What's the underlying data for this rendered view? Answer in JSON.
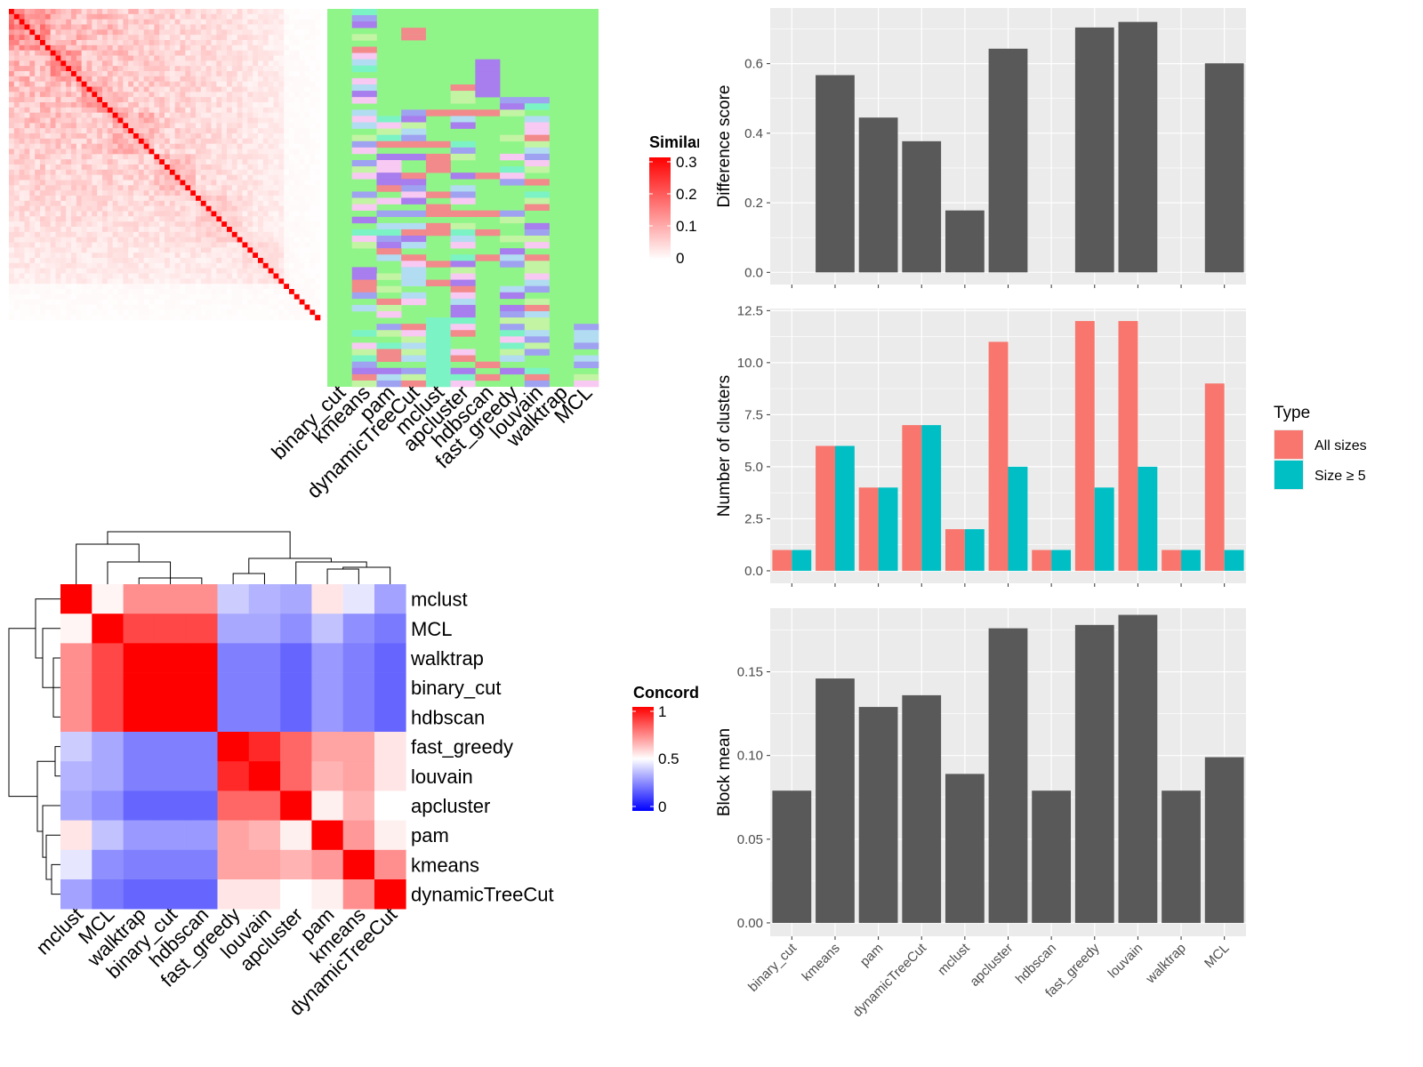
{
  "colors": {
    "heat_low": "#ffffff",
    "heat_high": "#ff0000",
    "conc_low": "#0000ff",
    "conc_mid": "#ffffff",
    "conc_high": "#ff0000",
    "bar_fill": "#595959",
    "panel_bg": "#ebebeb",
    "grid": "#ffffff",
    "all_sizes": "#f8766d",
    "size5": "#00bfc4",
    "cluster_green": "#90f589",
    "cluster_purple": "#a87ded",
    "cluster_salmon": "#f2898b",
    "cluster_lavender": "#9fa2f0",
    "cluster_lightblue": "#b2dcf1",
    "cluster_teal": "#7cf3c5",
    "cluster_pink": "#f8c9f2",
    "cluster_lightgreen": "#c3f4a3"
  },
  "top_left": {
    "legend_title": "Similarity",
    "legend_ticks": [
      "0.3",
      "0.2",
      "0.1",
      "0"
    ],
    "methods": [
      "binary_cut",
      "kmeans",
      "pam",
      "dynamicTreeCut",
      "mclust",
      "apcluster",
      "hdbscan",
      "fast_greedy",
      "louvain",
      "walktrap",
      "MCL"
    ]
  },
  "concordance": {
    "legend_title": "Concordance",
    "legend_ticks": [
      "1",
      "0.5",
      "0"
    ],
    "methods": [
      "mclust",
      "MCL",
      "walktrap",
      "binary_cut",
      "hdbscan",
      "fast_greedy",
      "louvain",
      "apcluster",
      "pam",
      "kmeans",
      "dynamicTreeCut"
    ],
    "matrix": [
      [
        1.0,
        0.52,
        0.72,
        0.72,
        0.72,
        0.4,
        0.35,
        0.33,
        0.55,
        0.45,
        0.32
      ],
      [
        0.52,
        1.0,
        0.86,
        0.86,
        0.86,
        0.33,
        0.33,
        0.28,
        0.38,
        0.28,
        0.24
      ],
      [
        0.72,
        0.86,
        1.0,
        1.0,
        1.0,
        0.25,
        0.25,
        0.2,
        0.3,
        0.25,
        0.2
      ],
      [
        0.72,
        0.86,
        1.0,
        1.0,
        1.0,
        0.25,
        0.25,
        0.2,
        0.3,
        0.25,
        0.2
      ],
      [
        0.72,
        0.86,
        1.0,
        1.0,
        1.0,
        0.25,
        0.25,
        0.2,
        0.3,
        0.25,
        0.2
      ],
      [
        0.4,
        0.33,
        0.25,
        0.25,
        0.25,
        1.0,
        0.92,
        0.8,
        0.68,
        0.68,
        0.55
      ],
      [
        0.35,
        0.33,
        0.25,
        0.25,
        0.25,
        0.92,
        1.0,
        0.8,
        0.65,
        0.68,
        0.55
      ],
      [
        0.33,
        0.28,
        0.2,
        0.2,
        0.2,
        0.8,
        0.8,
        1.0,
        0.53,
        0.65,
        0.5
      ],
      [
        0.55,
        0.38,
        0.3,
        0.3,
        0.3,
        0.68,
        0.65,
        0.53,
        1.0,
        0.7,
        0.53
      ],
      [
        0.45,
        0.28,
        0.25,
        0.25,
        0.25,
        0.68,
        0.68,
        0.65,
        0.7,
        1.0,
        0.72
      ],
      [
        0.32,
        0.24,
        0.2,
        0.2,
        0.2,
        0.55,
        0.55,
        0.5,
        0.53,
        0.72,
        1.0
      ]
    ]
  },
  "chart_data": [
    {
      "type": "bar",
      "ylabel": "Difference score",
      "categories": [
        "binary_cut",
        "kmeans",
        "pam",
        "dynamicTreeCut",
        "mclust",
        "apcluster",
        "hdbscan",
        "fast_greedy",
        "louvain",
        "walktrap",
        "MCL"
      ],
      "values": [
        0,
        0.567,
        0.445,
        0.377,
        0.178,
        0.643,
        0,
        0.704,
        0.72,
        0,
        0.601
      ],
      "ylim": [
        -0.035,
        0.76
      ],
      "yticks": [
        0.0,
        0.2,
        0.4,
        0.6
      ],
      "ytick_labels": [
        "0.0",
        "0.2",
        "0.4",
        "0.6"
      ],
      "grid": true
    },
    {
      "type": "bar",
      "ylabel": "Number of clusters",
      "categories": [
        "binary_cut",
        "kmeans",
        "pam",
        "dynamicTreeCut",
        "mclust",
        "apcluster",
        "hdbscan",
        "fast_greedy",
        "louvain",
        "walktrap",
        "MCL"
      ],
      "series": [
        {
          "name": "All sizes",
          "values": [
            1,
            6,
            4,
            7,
            2,
            11,
            1,
            12,
            12,
            1,
            9
          ]
        },
        {
          "name": "Size ≥ 5",
          "values": [
            1,
            6,
            4,
            7,
            2,
            5,
            1,
            4,
            5,
            1,
            1
          ]
        }
      ],
      "ylim": [
        -0.6,
        12.6
      ],
      "yticks": [
        0,
        2.5,
        5,
        7.5,
        10,
        12.5
      ],
      "ytick_labels": [
        "0.0",
        "2.5",
        "5.0",
        "7.5",
        "10.0",
        "12.5"
      ],
      "legend_title": "Type",
      "legend_position": "right",
      "grid": true
    },
    {
      "type": "bar",
      "ylabel": "Block mean",
      "categories": [
        "binary_cut",
        "kmeans",
        "pam",
        "dynamicTreeCut",
        "mclust",
        "apcluster",
        "hdbscan",
        "fast_greedy",
        "louvain",
        "walktrap",
        "MCL"
      ],
      "values": [
        0.079,
        0.146,
        0.129,
        0.136,
        0.089,
        0.176,
        0.079,
        0.178,
        0.184,
        0.079,
        0.099
      ],
      "ylim": [
        -0.008,
        0.188
      ],
      "yticks": [
        0.0,
        0.05,
        0.1,
        0.15
      ],
      "ytick_labels": [
        "0.00",
        "0.05",
        "0.10",
        "0.15"
      ],
      "grid": true
    }
  ]
}
